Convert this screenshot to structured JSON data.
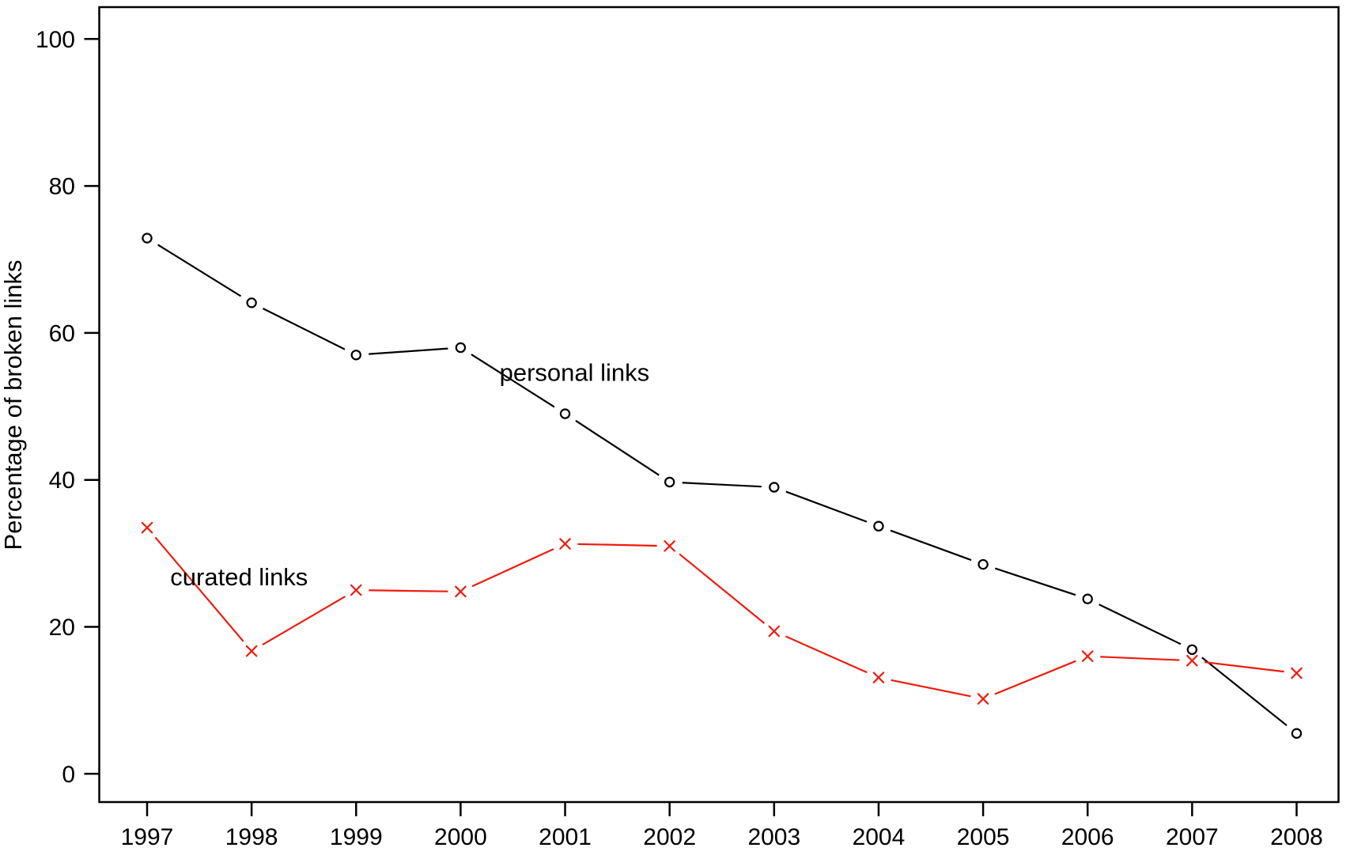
{
  "figure": {
    "background": "#ffffff"
  },
  "chart_data": {
    "type": "line",
    "title": "",
    "xlabel": "",
    "ylabel": "Percentage of broken links",
    "x": [
      1997,
      1998,
      1999,
      2000,
      2001,
      2002,
      2003,
      2004,
      2005,
      2006,
      2007,
      2008
    ],
    "xtick_labels": [
      "1997",
      "1998",
      "1999",
      "2000",
      "2001",
      "2002",
      "2003",
      "2004",
      "2005",
      "2006",
      "2007",
      "2008"
    ],
    "yticks": [
      0,
      20,
      40,
      60,
      80,
      100
    ],
    "ytick_labels": [
      "0",
      "20",
      "40",
      "60",
      "80",
      "100"
    ],
    "ylim": [
      0,
      100
    ],
    "grid": false,
    "legend": "inline text annotations beside each line",
    "series": [
      {
        "name": "personal links",
        "color": "#000000",
        "marker": "circle",
        "line_style": "solid",
        "values": [
          72.9,
          64.1,
          57.0,
          58.0,
          49.0,
          39.7,
          39.0,
          33.7,
          28.5,
          23.8,
          16.9,
          5.5
        ],
        "label": {
          "text": "personal links",
          "x": 2001.09,
          "y": 53.5
        }
      },
      {
        "name": "curated links",
        "color": "#ed1c0f",
        "marker": "x",
        "line_style": "solid",
        "values": [
          33.5,
          16.7,
          25.0,
          24.8,
          31.3,
          31.0,
          19.4,
          13.1,
          10.2,
          16.0,
          15.4,
          13.7
        ],
        "label": {
          "text": "curated links",
          "x": 1997.88,
          "y": 25.65
        }
      }
    ]
  }
}
